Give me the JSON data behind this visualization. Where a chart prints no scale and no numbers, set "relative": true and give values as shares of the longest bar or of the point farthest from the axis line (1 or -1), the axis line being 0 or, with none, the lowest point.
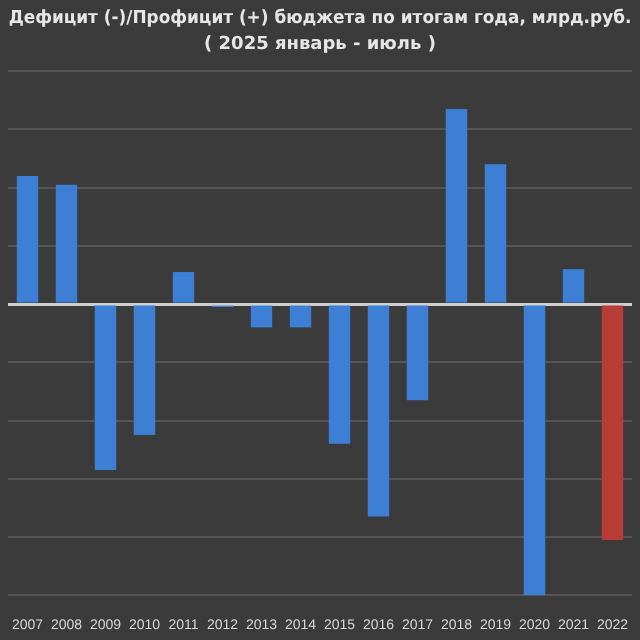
{
  "chart_data": {
    "type": "bar",
    "title": "Дефицит (-)/Профицит (+) бюджета по итогам года, млрд.руб.",
    "subtitle": "( 2025 январь - июль )",
    "relative": true,
    "grid": "y",
    "legend": false,
    "categories": [
      "2007",
      "2008",
      "2009",
      "2010",
      "2011",
      "2012",
      "2013",
      "2014",
      "2015",
      "2016",
      "2017",
      "2018",
      "2019",
      "2020",
      "2021",
      "2022"
    ],
    "values": [
      0.44,
      0.41,
      -0.57,
      -0.45,
      0.11,
      -0.01,
      -0.08,
      -0.08,
      -0.48,
      -0.73,
      -0.33,
      0.67,
      0.48,
      -1,
      0.12,
      -0.81
    ],
    "colors": [
      "#3d7fd4",
      "#3d7fd4",
      "#3d7fd4",
      "#3d7fd4",
      "#3d7fd4",
      "#3d7fd4",
      "#3d7fd4",
      "#3d7fd4",
      "#3d7fd4",
      "#3d7fd4",
      "#3d7fd4",
      "#3d7fd4",
      "#3d7fd4",
      "#3d7fd4",
      "#3d7fd4",
      "#b83c36"
    ]
  }
}
